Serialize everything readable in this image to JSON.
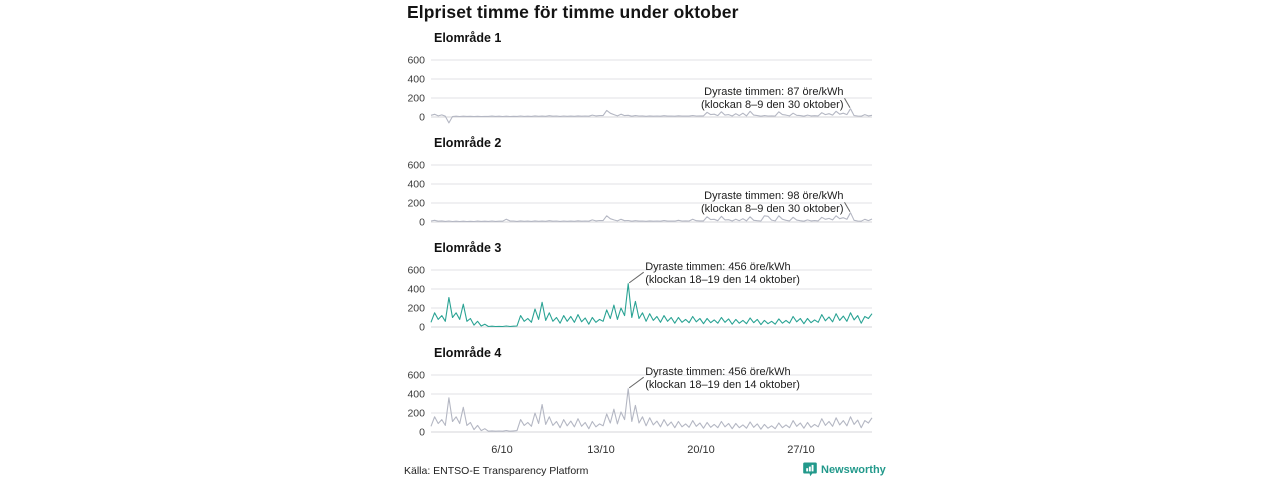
{
  "title": "Elpriset timme för timme under oktober",
  "footer": {
    "source": "Källa: ENTSO-E Transparency Platform",
    "brand": "Newsworthy"
  },
  "colors": {
    "teal_line": "#2aa394",
    "gray_line": "#b4b7c3",
    "brand_teal": "#22998b",
    "gridline": "#e2e2e6",
    "zeroline": "#d6d6da"
  },
  "chart_data": {
    "type": "line",
    "title": "Elpriset timme för timme under oktober",
    "x_unit": "timmar, 1–31 oktober",
    "y_unit": "öre/kWh",
    "ylim": [
      0,
      600
    ],
    "y_ticks": [
      0,
      200,
      400,
      600
    ],
    "x_ticks": [
      "6/10",
      "13/10",
      "20/10",
      "27/10"
    ],
    "grid": true,
    "series": [
      {
        "name": "Elområde 1",
        "color": "#b4b7c3",
        "annotation": {
          "line1": "Dyraste timmen: 87 öre/kWh",
          "line2": "(klockan 8–9 den 30 oktober)",
          "align": "right",
          "peak_value": 87
        },
        "values": [
          18,
          28,
          12,
          22,
          8,
          -62,
          5,
          8,
          5,
          8,
          6,
          7,
          5,
          7,
          5,
          6,
          6,
          9,
          6,
          8,
          5,
          8,
          5,
          7,
          6,
          10,
          6,
          8,
          6,
          12,
          7,
          9,
          7,
          14,
          8,
          10,
          6,
          10,
          7,
          9,
          7,
          12,
          8,
          10,
          8,
          20,
          12,
          15,
          15,
          70,
          40,
          25,
          12,
          30,
          15,
          18,
          8,
          15,
          10,
          12,
          7,
          12,
          8,
          10,
          8,
          14,
          9,
          11,
          8,
          13,
          9,
          10,
          9,
          15,
          10,
          12,
          12,
          50,
          25,
          30,
          15,
          55,
          20,
          25,
          10,
          35,
          15,
          40,
          12,
          60,
          20,
          15,
          8,
          15,
          10,
          12,
          10,
          55,
          25,
          20,
          12,
          40,
          18,
          15,
          8,
          20,
          12,
          14,
          12,
          45,
          25,
          35,
          20,
          60,
          30,
          40,
          25,
          87,
          15,
          10,
          8,
          25,
          12,
          18
        ]
      },
      {
        "name": "Elområde 2",
        "color": "#b4b7c3",
        "annotation": {
          "line1": "Dyraste timmen: 98 öre/kWh",
          "line2": "(klockan 8–9 den 30 oktober)",
          "align": "right",
          "peak_value": 98
        },
        "values": [
          10,
          18,
          8,
          12,
          6,
          10,
          5,
          8,
          5,
          8,
          5,
          7,
          5,
          9,
          6,
          8,
          6,
          10,
          6,
          8,
          8,
          30,
          12,
          10,
          6,
          12,
          7,
          9,
          6,
          12,
          7,
          9,
          7,
          14,
          8,
          10,
          6,
          11,
          7,
          9,
          7,
          13,
          8,
          10,
          8,
          22,
          12,
          16,
          15,
          65,
          35,
          22,
          12,
          28,
          14,
          16,
          8,
          14,
          9,
          11,
          7,
          12,
          8,
          10,
          8,
          15,
          9,
          11,
          9,
          18,
          10,
          12,
          10,
          30,
          14,
          12,
          12,
          55,
          25,
          28,
          14,
          60,
          22,
          24,
          10,
          30,
          14,
          35,
          12,
          55,
          18,
          14,
          10,
          65,
          60,
          20,
          12,
          65,
          30,
          18,
          12,
          50,
          20,
          14,
          8,
          22,
          12,
          15,
          12,
          50,
          28,
          38,
          22,
          65,
          35,
          45,
          28,
          98,
          18,
          10,
          8,
          28,
          15,
          32
        ]
      },
      {
        "name": "Elområde 3",
        "color": "#2aa394",
        "annotation": {
          "line1": "Dyraste timmen: 456 öre/kWh",
          "line2": "(klockan 18–19 den 14 oktober)",
          "align": "left",
          "peak_value": 456
        },
        "values": [
          50,
          150,
          80,
          120,
          60,
          310,
          100,
          150,
          80,
          240,
          60,
          90,
          20,
          60,
          10,
          30,
          5,
          8,
          5,
          6,
          5,
          10,
          5,
          8,
          10,
          120,
          60,
          90,
          50,
          190,
          80,
          260,
          70,
          150,
          60,
          100,
          40,
          120,
          60,
          110,
          50,
          130,
          55,
          95,
          30,
          100,
          50,
          80,
          60,
          180,
          90,
          230,
          80,
          200,
          120,
          456,
          100,
          270,
          90,
          150,
          60,
          140,
          70,
          110,
          50,
          120,
          60,
          100,
          40,
          100,
          50,
          80,
          45,
          110,
          55,
          90,
          35,
          90,
          45,
          75,
          40,
          100,
          50,
          85,
          30,
          80,
          40,
          70,
          35,
          95,
          45,
          80,
          25,
          70,
          35,
          60,
          30,
          85,
          40,
          70,
          40,
          110,
          55,
          90,
          35,
          90,
          45,
          75,
          50,
          130,
          65,
          105,
          55,
          140,
          70,
          115,
          60,
          150,
          75,
          120,
          40,
          110,
          90,
          140
        ]
      },
      {
        "name": "Elområde 4",
        "color": "#b4b7c3",
        "annotation": {
          "line1": "Dyraste timmen: 456 öre/kWh",
          "line2": "(klockan 18–19 den 14 oktober)",
          "align": "left",
          "peak_value": 456
        },
        "values": [
          60,
          160,
          90,
          130,
          70,
          360,
          110,
          160,
          90,
          260,
          70,
          100,
          25,
          70,
          15,
          35,
          8,
          12,
          8,
          10,
          8,
          15,
          8,
          12,
          15,
          130,
          70,
          100,
          60,
          200,
          90,
          290,
          80,
          160,
          70,
          110,
          45,
          130,
          65,
          115,
          55,
          140,
          60,
          100,
          35,
          110,
          55,
          85,
          65,
          190,
          95,
          240,
          85,
          210,
          130,
          456,
          110,
          280,
          95,
          160,
          65,
          150,
          75,
          115,
          55,
          130,
          65,
          105,
          45,
          110,
          55,
          85,
          50,
          120,
          60,
          95,
          40,
          100,
          50,
          80,
          45,
          110,
          55,
          90,
          35,
          90,
          45,
          75,
          40,
          105,
          50,
          85,
          30,
          80,
          40,
          65,
          35,
          95,
          45,
          75,
          45,
          120,
          60,
          95,
          40,
          100,
          50,
          80,
          55,
          140,
          70,
          110,
          60,
          150,
          75,
          120,
          65,
          160,
          80,
          125,
          45,
          120,
          95,
          150
        ]
      }
    ]
  }
}
